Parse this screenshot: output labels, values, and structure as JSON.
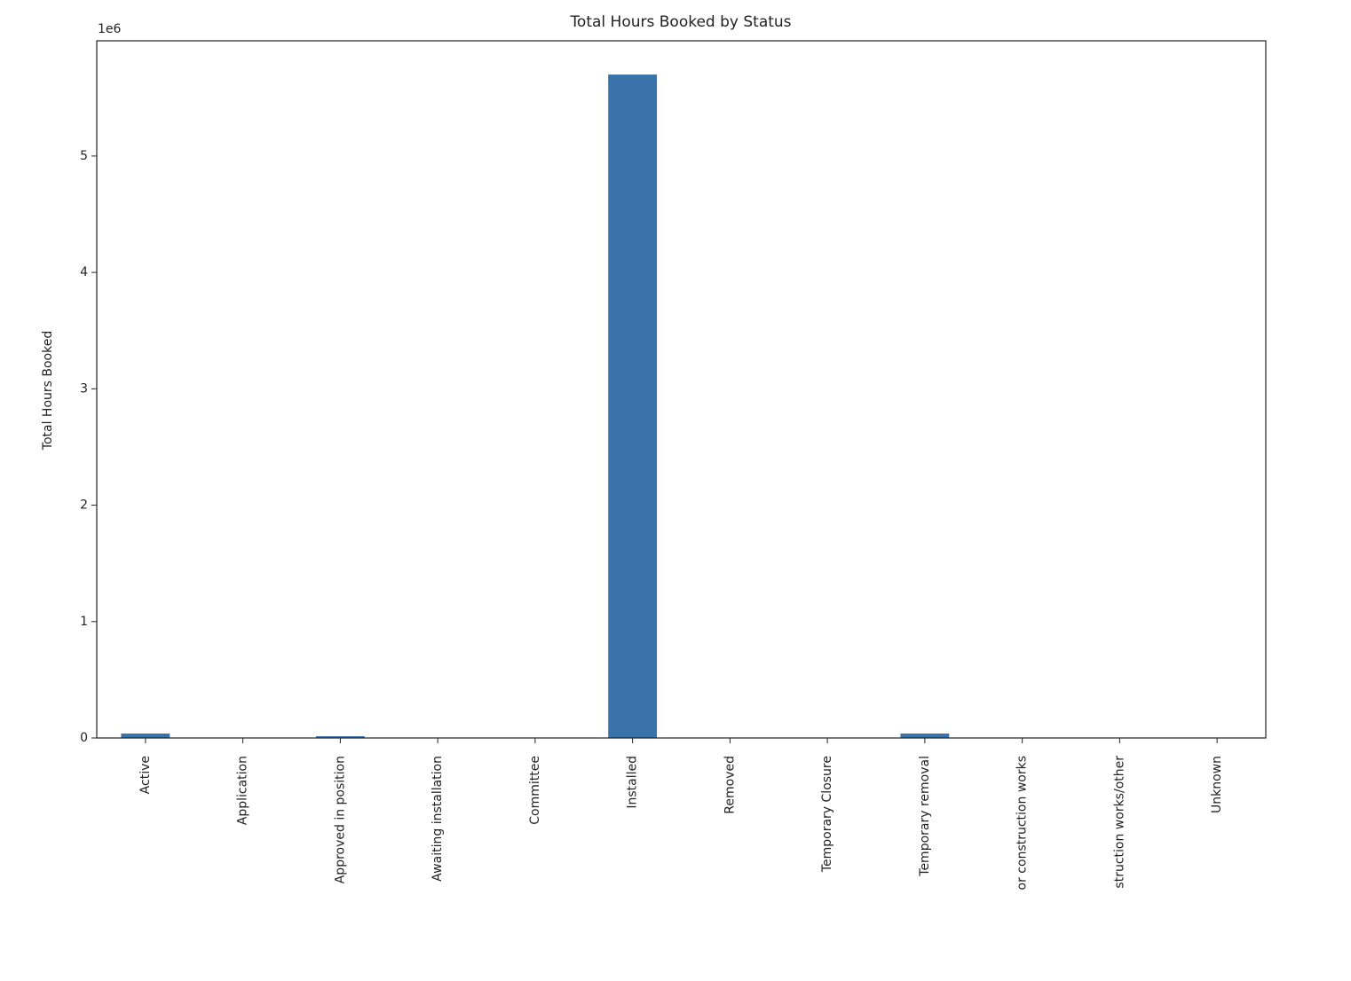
{
  "chart_data": {
    "type": "bar",
    "title": "Total Hours Booked by Status",
    "ylabel": "Total Hours Booked",
    "y_offset_label": "1e6",
    "categories": [
      "Active",
      "Application",
      "Approved in position",
      "Awaiting installation",
      "Committee",
      "Installed",
      "Removed",
      "Temporary Closure",
      "Temporary removal",
      "or construction works",
      "struction works/other",
      "Unknown"
    ],
    "values": [
      38000,
      0,
      15000,
      0,
      0,
      5700000,
      0,
      0,
      38000,
      0,
      0,
      0
    ],
    "color": "#3a72aa",
    "ylim": [
      0,
      5990000
    ],
    "yticks": [
      0,
      {
        "value": 1000000,
        "label": "1"
      },
      {
        "value": 2000000,
        "label": "2"
      },
      {
        "value": 3000000,
        "label": "3"
      },
      {
        "value": 4000000,
        "label": "4"
      },
      {
        "value": 5000000,
        "label": "5"
      }
    ]
  }
}
